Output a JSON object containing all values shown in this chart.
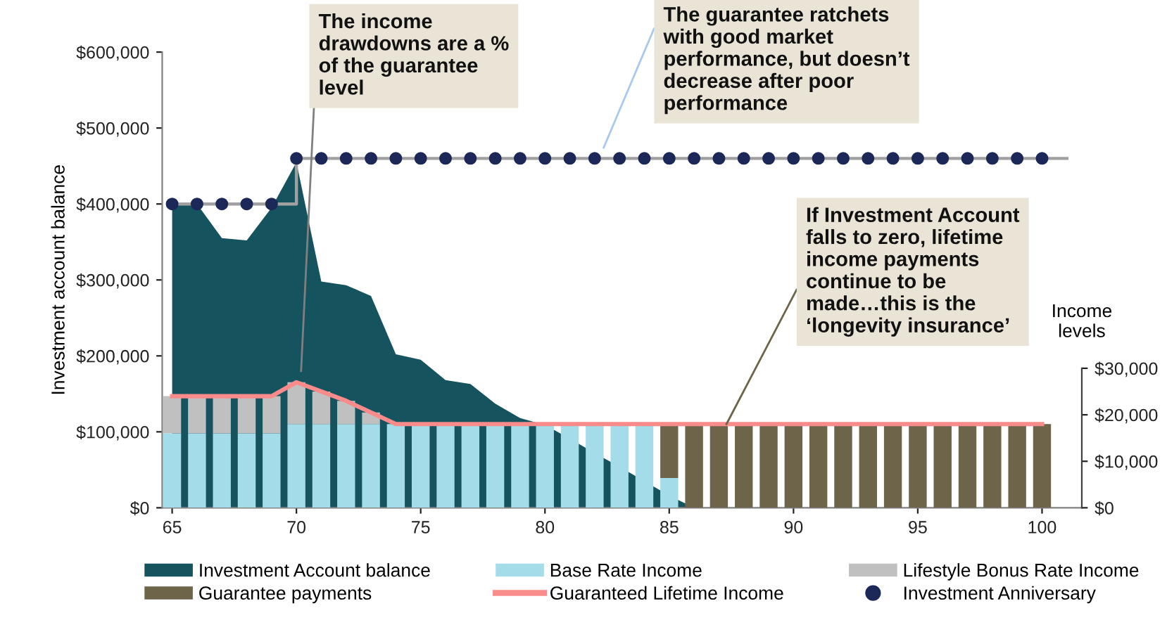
{
  "chart_data": {
    "type": "bar",
    "xlabel": null,
    "ylabel": "Investment account balance",
    "y2label": "Income levels",
    "x": [
      65,
      66,
      67,
      68,
      69,
      70,
      71,
      72,
      73,
      74,
      75,
      76,
      77,
      78,
      79,
      80,
      81,
      82,
      83,
      84,
      85,
      86,
      87,
      88,
      89,
      90,
      91,
      92,
      93,
      94,
      95,
      96,
      97,
      98,
      99,
      100
    ],
    "stacked": true,
    "series": [
      {
        "name": "Investment Account balance",
        "type": "area",
        "axis": "y",
        "color": "#15535f",
        "values": [
          400000,
          400000,
          355000,
          352000,
          395000,
          455000,
          298000,
          293000,
          279000,
          202000,
          195000,
          168000,
          163000,
          137000,
          118000,
          109000,
          91000,
          72000,
          54000,
          35000,
          16000,
          0,
          null,
          null,
          null,
          null,
          null,
          null,
          null,
          null,
          null,
          null,
          null,
          null,
          null,
          null
        ]
      },
      {
        "name": "Base Rate Income",
        "axis": "y2",
        "color": "#a4dcea",
        "values": [
          16000,
          16000,
          16000,
          16000,
          16000,
          18000,
          18000,
          18000,
          18000,
          18000,
          18000,
          18000,
          18000,
          18000,
          18000,
          18000,
          18000,
          18000,
          18000,
          18000,
          6400,
          null,
          null,
          null,
          null,
          null,
          null,
          null,
          null,
          null,
          null,
          null,
          null,
          null,
          null,
          null
        ]
      },
      {
        "name": "Lifestyle Bonus Rate Income",
        "axis": "y2",
        "color": "#c0c0c0",
        "values": [
          8000,
          8000,
          8000,
          8000,
          8000,
          9000,
          7000,
          5000,
          2500,
          null,
          null,
          null,
          null,
          null,
          null,
          null,
          null,
          null,
          null,
          null,
          null,
          null,
          null,
          null,
          null,
          null,
          null,
          null,
          null,
          null,
          null,
          null,
          null,
          null,
          null,
          null
        ]
      },
      {
        "name": "Guarantee payments",
        "axis": "y2",
        "color": "#6e644a",
        "values": [
          null,
          null,
          null,
          null,
          null,
          null,
          null,
          null,
          null,
          null,
          null,
          null,
          null,
          null,
          null,
          null,
          null,
          null,
          null,
          null,
          11600,
          18000,
          18000,
          18000,
          18000,
          18000,
          18000,
          18000,
          18000,
          18000,
          18000,
          18000,
          18000,
          18000,
          18000,
          18000
        ]
      },
      {
        "type": "step",
        "axis": "y",
        "color": "#a0a0a0",
        "line_style": "solid",
        "x": [
          65,
          70,
          101
        ],
        "values": [
          400000,
          460000,
          460000
        ]
      },
      {
        "name": "Guaranteed Lifetime Income",
        "type": "line",
        "axis": "y2",
        "color": "#f98b8b",
        "line_style": "solid",
        "values": [
          24000,
          24000,
          24000,
          24000,
          24000,
          27000,
          25000,
          23000,
          20500,
          18000,
          18000,
          18000,
          18000,
          18000,
          18000,
          18000,
          18000,
          18000,
          18000,
          18000,
          18000,
          18000,
          18000,
          18000,
          18000,
          18000,
          18000,
          18000,
          18000,
          18000,
          18000,
          18000,
          18000,
          18000,
          18000,
          18000
        ]
      },
      {
        "name": "Investment Anniversary",
        "type": "scatter",
        "axis": "y",
        "color": "#1c2858",
        "marker": "circle",
        "values": [
          400000,
          400000,
          400000,
          400000,
          400000,
          460000,
          460000,
          460000,
          460000,
          460000,
          460000,
          460000,
          460000,
          460000,
          460000,
          460000,
          460000,
          460000,
          460000,
          460000,
          460000,
          460000,
          460000,
          460000,
          460000,
          460000,
          460000,
          460000,
          460000,
          460000,
          460000,
          460000,
          460000,
          460000,
          460000,
          460000
        ]
      }
    ],
    "xlim": [
      64.6,
      101.6
    ],
    "xticks": [
      65,
      70,
      75,
      80,
      85,
      90,
      95,
      100
    ],
    "ylim": [
      0,
      600000
    ],
    "yticks": [
      {
        "value": 0,
        "label": "$0"
      },
      {
        "value": 100000,
        "label": "$100,000"
      },
      {
        "value": 200000,
        "label": "$200,000"
      },
      {
        "value": 300000,
        "label": "$300,000"
      },
      {
        "value": 400000,
        "label": "$400,000"
      },
      {
        "value": 500000,
        "label": "$500,000"
      },
      {
        "value": 600000,
        "label": "$600,000"
      }
    ],
    "y2lim": [
      0,
      98000
    ],
    "y2ticks": [
      {
        "value": 0,
        "label": "$0"
      },
      {
        "value": 10000,
        "label": "$10,000"
      },
      {
        "value": 20000,
        "label": "$20,000"
      },
      {
        "value": 30000,
        "label": "$30,000"
      }
    ],
    "annotations": [
      "The income drawdowns are a % of the guarantee level",
      "The guarantee ratchets with good market performance, but doesn’t decrease after poor performance",
      {
        "text": "If Investment Account falls to zero, lifetime income payments continue to be made…this is the ‘longevity insurance’",
        "x": 87.3,
        "y": 110000
      }
    ],
    "grid": false,
    "legend": "bottom"
  }
}
